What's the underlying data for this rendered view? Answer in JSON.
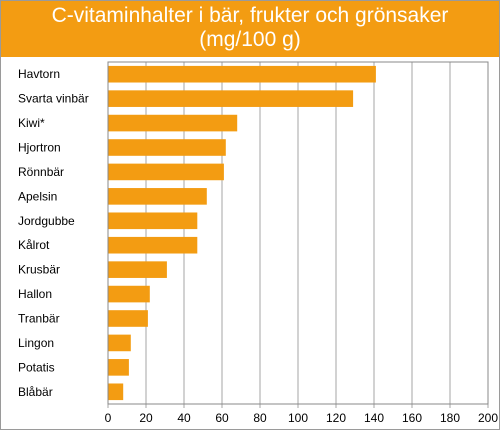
{
  "chart_data": {
    "type": "bar",
    "orientation": "horizontal",
    "title_lines": [
      "C-vitaminhalter i bär, frukter och grönsaker",
      "(mg/100 g)"
    ],
    "categories": [
      "Havtorn",
      "Svarta vinbär",
      "Kiwi*",
      "Hjortron",
      "Rönnbär",
      "Apelsin",
      "Jordgubbe",
      "Kålrot",
      "Krusbär",
      "Hallon",
      "Tranbär",
      "Lingon",
      "Potatis",
      "Blåbär"
    ],
    "values": [
      141,
      129,
      68,
      62,
      61,
      52,
      47,
      47,
      31,
      22,
      21,
      12,
      11,
      8
    ],
    "xlim": [
      0,
      200
    ],
    "xticks": [
      0,
      20,
      40,
      60,
      80,
      100,
      120,
      140,
      160,
      180,
      200
    ],
    "grid": "vertical",
    "bar_color": "#f39c12",
    "title_band_color": "#f39c12"
  }
}
